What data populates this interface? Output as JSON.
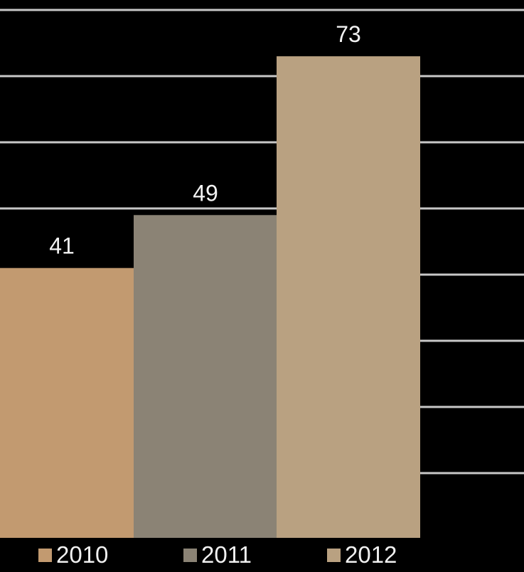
{
  "chart_data": {
    "type": "bar",
    "categories": [
      "2010",
      "2011",
      "2012"
    ],
    "values": [
      41,
      49,
      73
    ],
    "colors": [
      "#c29a70",
      "#8b8375",
      "#b9a181"
    ],
    "ylim": [
      0,
      80
    ],
    "grid": true,
    "legend": {
      "placement": "bottom",
      "entries": [
        "2010",
        "2011",
        "2012"
      ]
    },
    "title": "",
    "xlabel": "",
    "ylabel": ""
  },
  "theme": {
    "background": "#000000",
    "grid_color": "#c8c8c8",
    "label_color": "#f2f2f2"
  }
}
